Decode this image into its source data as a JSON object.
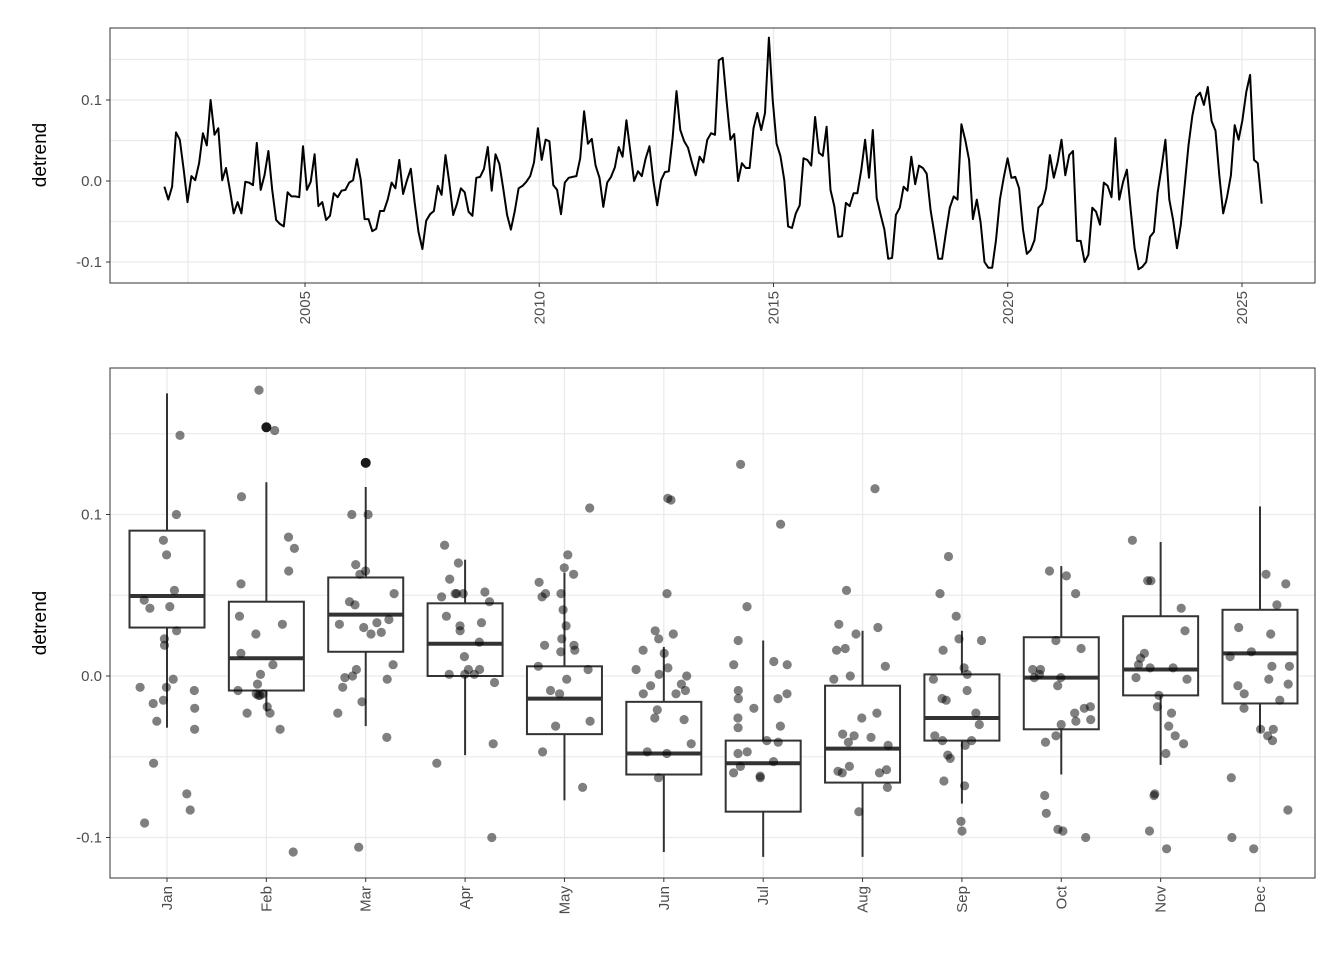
{
  "chart_data": [
    {
      "type": "line",
      "title": "",
      "xlabel": "",
      "ylabel": "detrend",
      "xlim": [
        2001.0,
        2026.7
      ],
      "ylim": [
        -0.125,
        0.19
      ],
      "x_ticks": [
        2005,
        2010,
        2015,
        2020,
        2025
      ],
      "x_tick_labels": [
        "2005",
        "2010",
        "2015",
        "2020",
        "2025"
      ],
      "y_ticks": [
        -0.1,
        0.0,
        0.1
      ],
      "y_tick_labels": [
        "-0.1",
        "0.0",
        "0.1"
      ],
      "grid": true,
      "series_start": 2002.0,
      "series_end": 2025.42,
      "values": [
        -0.007,
        -0.023,
        -0.007,
        0.06,
        0.051,
        0.014,
        -0.026,
        0.006,
        0.001,
        0.022,
        0.059,
        0.044,
        0.1,
        0.057,
        0.065,
        0.001,
        0.016,
        -0.011,
        -0.04,
        -0.026,
        -0.04,
        -0.001,
        -0.002,
        -0.005,
        0.047,
        -0.011,
        0.007,
        0.037,
        -0.011,
        -0.048,
        -0.053,
        -0.056,
        -0.014,
        -0.019,
        -0.019,
        -0.02,
        0.043,
        -0.011,
        -0.001,
        0.033,
        -0.031,
        -0.026,
        -0.048,
        -0.043,
        -0.015,
        -0.02,
        -0.012,
        -0.011,
        -0.002,
        0.001,
        0.027,
        0.001,
        -0.047,
        -0.047,
        -0.062,
        -0.059,
        -0.037,
        -0.037,
        -0.023,
        -0.002,
        -0.009,
        0.026,
        -0.016,
        0.001,
        0.015,
        -0.027,
        -0.063,
        -0.084,
        -0.049,
        -0.041,
        -0.037,
        -0.006,
        -0.017,
        0.032,
        -0.002,
        -0.042,
        -0.028,
        -0.009,
        -0.014,
        -0.038,
        -0.043,
        0.004,
        0.005,
        0.015,
        0.042,
        -0.012,
        0.033,
        0.021,
        -0.009,
        -0.042,
        -0.06,
        -0.037,
        -0.009,
        -0.006,
        -0.001,
        0.006,
        0.023,
        0.065,
        0.026,
        0.051,
        0.049,
        -0.005,
        -0.011,
        -0.041,
        -0.002,
        0.004,
        0.005,
        0.006,
        0.028,
        0.086,
        0.046,
        0.052,
        0.019,
        0.004,
        -0.032,
        -0.002,
        0.005,
        0.017,
        0.042,
        0.03,
        0.075,
        0.037,
        0.0,
        0.012,
        0.006,
        0.028,
        0.043,
        0.0,
        -0.03,
        0.001,
        0.011,
        0.012,
        0.053,
        0.111,
        0.063,
        0.049,
        0.041,
        0.023,
        0.007,
        0.03,
        0.023,
        0.051,
        0.059,
        0.057,
        0.149,
        0.152,
        0.1,
        0.051,
        0.058,
        0.0,
        0.022,
        0.016,
        0.016,
        0.065,
        0.084,
        0.063,
        0.084,
        0.177,
        0.1,
        0.046,
        0.031,
        0.001,
        -0.056,
        -0.058,
        -0.04,
        -0.03,
        0.028,
        0.026,
        0.019,
        0.079,
        0.035,
        0.031,
        0.067,
        -0.011,
        -0.031,
        -0.069,
        -0.068,
        -0.027,
        -0.031,
        -0.015,
        -0.015,
        0.014,
        0.051,
        0.004,
        0.063,
        -0.021,
        -0.041,
        -0.06,
        -0.096,
        -0.095,
        -0.042,
        -0.033,
        -0.007,
        -0.012,
        0.03,
        -0.004,
        0.019,
        0.016,
        0.009,
        -0.036,
        -0.065,
        -0.096,
        -0.096,
        -0.063,
        -0.033,
        -0.019,
        -0.023,
        0.07,
        0.051,
        0.026,
        -0.047,
        -0.023,
        -0.051,
        -0.1,
        -0.107,
        -0.107,
        -0.073,
        -0.023,
        0.004,
        0.028,
        0.004,
        0.005,
        -0.009,
        -0.06,
        -0.09,
        -0.085,
        -0.073,
        -0.033,
        -0.028,
        -0.009,
        0.032,
        0.004,
        0.023,
        0.051,
        0.007,
        0.032,
        0.037,
        -0.074,
        -0.074,
        -0.1,
        -0.091,
        -0.033,
        -0.038,
        -0.054,
        -0.002,
        -0.006,
        -0.02,
        0.053,
        -0.023,
        -0.001,
        0.014,
        -0.037,
        -0.083,
        -0.109,
        -0.106,
        -0.1,
        -0.069,
        -0.063,
        -0.014,
        0.017,
        0.051,
        -0.023,
        -0.048,
        -0.083,
        -0.054,
        -0.005,
        0.044,
        0.081,
        0.104,
        0.109,
        0.094,
        0.116,
        0.074,
        0.062,
        0.007,
        -0.04,
        -0.02,
        0.007,
        0.069,
        0.051,
        0.075,
        0.11,
        0.131,
        0.026,
        0.022,
        -0.028
      ],
      "color": "#000000"
    },
    {
      "type": "box",
      "title": "",
      "xlabel": "",
      "ylabel": "detrend",
      "ylim": [
        -0.126,
        0.19
      ],
      "y_ticks": [
        -0.1,
        0.0,
        0.1
      ],
      "y_tick_labels": [
        "-0.1",
        "0.0",
        "0.1"
      ],
      "grid": true,
      "categories": [
        "Jan",
        "Feb",
        "Mar",
        "Apr",
        "May",
        "Jun",
        "Jul",
        "Aug",
        "Sep",
        "Oct",
        "Nov",
        "Dec"
      ],
      "boxes": [
        {
          "lower": -0.032,
          "q1": 0.03,
          "median": 0.0495,
          "q3": 0.09,
          "upper": 0.175,
          "outliers": []
        },
        {
          "lower": -0.022,
          "q1": -0.009,
          "median": 0.011,
          "q3": 0.046,
          "upper": 0.12,
          "outliers": [
            0.154
          ]
        },
        {
          "lower": -0.031,
          "q1": 0.015,
          "median": 0.038,
          "q3": 0.061,
          "upper": 0.117,
          "outliers": [
            0.132
          ]
        },
        {
          "lower": -0.049,
          "q1": 0.0,
          "median": 0.02,
          "q3": 0.045,
          "upper": 0.072,
          "outliers": []
        },
        {
          "lower": -0.077,
          "q1": -0.036,
          "median": -0.014,
          "q3": 0.006,
          "upper": 0.064,
          "outliers": []
        },
        {
          "lower": -0.109,
          "q1": -0.061,
          "median": -0.048,
          "q3": -0.016,
          "upper": 0.018,
          "outliers": []
        },
        {
          "lower": -0.112,
          "q1": -0.084,
          "median": -0.054,
          "q3": -0.04,
          "upper": 0.022,
          "outliers": []
        },
        {
          "lower": -0.112,
          "q1": -0.066,
          "median": -0.045,
          "q3": -0.006,
          "upper": 0.028,
          "outliers": []
        },
        {
          "lower": -0.079,
          "q1": -0.04,
          "median": -0.026,
          "q3": 0.001,
          "upper": 0.028,
          "outliers": []
        },
        {
          "lower": -0.061,
          "q1": -0.033,
          "median": -0.001,
          "q3": 0.024,
          "upper": 0.068,
          "outliers": []
        },
        {
          "lower": -0.055,
          "q1": -0.012,
          "median": 0.004,
          "q3": 0.037,
          "upper": 0.083,
          "outliers": []
        },
        {
          "lower": -0.035,
          "q1": -0.017,
          "median": 0.014,
          "q3": 0.041,
          "upper": 0.105,
          "outliers": []
        }
      ],
      "points_from": "monthly values of the line series, jittered",
      "point_color": "#000000",
      "point_alpha": 0.5
    }
  ]
}
